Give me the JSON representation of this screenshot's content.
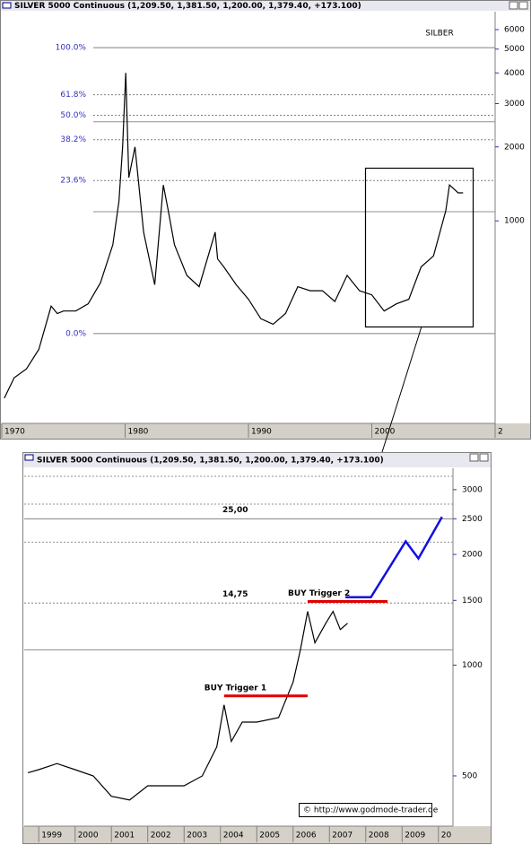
{
  "chart_data": [
    {
      "type": "line",
      "window_title": "SILVER 5000 Continuous (1,209.50, 1,381.50, 1,200.00, 1,379.40, +173.100)",
      "title": "SILBER",
      "log_scale": true,
      "xlim": [
        1970,
        2010
      ],
      "xticks": [
        1970,
        1980,
        1990,
        2000,
        {
          "value": 2010,
          "label": "2"
        }
      ],
      "ylim": [
        150,
        7100
      ],
      "yticks": [
        1000,
        2000,
        3000,
        4000,
        5000,
        6000
      ],
      "series": [
        {
          "name": "SILVER 5000 Continuous",
          "color": "#000000",
          "x": [
            1970.2,
            1971,
            1972,
            1973,
            1974,
            1974.5,
            1975,
            1976,
            1977,
            1978,
            1979,
            1979.5,
            1979.8,
            1980.05,
            1980.3,
            1980.8,
            1981.5,
            1982.4,
            1983.1,
            1983.5,
            1984,
            1985,
            1986,
            1987.3,
            1987.5,
            1988,
            1989,
            1990,
            1991,
            1992,
            1993,
            1994,
            1995,
            1996,
            1997,
            1998,
            1999,
            2000,
            2001,
            2002,
            2003,
            2004,
            2005,
            2006,
            2006.3,
            2007,
            2007.4
          ],
          "values": [
            190,
            230,
            250,
            300,
            450,
            420,
            430,
            430,
            460,
            560,
            800,
            1200,
            2000,
            4000,
            1500,
            2000,
            900,
            550,
            1400,
            1100,
            800,
            600,
            540,
            900,
            700,
            650,
            550,
            480,
            400,
            380,
            420,
            540,
            520,
            520,
            470,
            600,
            520,
            500,
            430,
            460,
            480,
            650,
            720,
            1100,
            1400,
            1300,
            1300
          ]
        }
      ],
      "levels": [
        {
          "value": 5070,
          "label": "100.0%",
          "dash": false
        },
        {
          "value": 3260,
          "label": "61.8%",
          "dash": true
        },
        {
          "value": 2690,
          "label": "50.0%",
          "dash": true
        },
        {
          "value": 2140,
          "label": "38.2%",
          "dash": true
        },
        {
          "value": 1460,
          "label": "23.6%",
          "dash": true
        },
        {
          "value": 348,
          "label": "0.0%",
          "dash": false
        }
      ],
      "reference_lines": [
        {
          "value": 2530,
          "dash": false
        },
        {
          "value": 1090,
          "dash": false
        }
      ]
    },
    {
      "type": "line",
      "window_title": "SILVER 5000 Continuous (1,209.50, 1,381.50, 1,200.00, 1,379.40, +173.100)",
      "log_scale": true,
      "xlim": [
        1998.6,
        2010.4
      ],
      "xticks": [
        1999,
        2000,
        2001,
        2002,
        2003,
        2004,
        2005,
        2006,
        2007,
        2008,
        2009,
        {
          "value": 2010,
          "label": "20"
        }
      ],
      "ylim": [
        365,
        3430
      ],
      "yticks": [
        500,
        1000,
        1500,
        2000,
        2500,
        3000
      ],
      "series": [
        {
          "name": "SILVER 5000 Continuous",
          "color": "#000000",
          "x": [
            1998.7,
            1999,
            1999.5,
            2000,
            2000.5,
            2001,
            2001.5,
            2002,
            2002.5,
            2003,
            2003.5,
            2003.9,
            2004.1,
            2004.3,
            2004.6,
            2005,
            2005.6,
            2006,
            2006.2,
            2006.4,
            2006.6,
            2006.9,
            2007.1,
            2007.3,
            2007.5
          ],
          "values": [
            510,
            520,
            540,
            520,
            500,
            440,
            430,
            470,
            470,
            470,
            500,
            600,
            780,
            620,
            700,
            700,
            720,
            900,
            1100,
            1400,
            1150,
            1300,
            1400,
            1250,
            1300
          ]
        },
        {
          "name": "Projection",
          "color": "#1010e0",
          "x": [
            2007.44,
            2008.14,
            2009.1,
            2009.45,
            2010.1
          ],
          "values": [
            1530,
            1530,
            2170,
            1950,
            2530
          ]
        }
      ],
      "levels": [
        {
          "value": 2500,
          "label": "25,00",
          "dash": false
        },
        {
          "value": 1475,
          "label": "14,75",
          "dash": true
        }
      ],
      "reference_lines": [
        {
          "value": 3260,
          "dash": true
        },
        {
          "value": 2740,
          "dash": true
        },
        {
          "value": 2160,
          "dash": true
        },
        {
          "value": 1100,
          "dash": false
        }
      ],
      "triggers": [
        {
          "label": "BUY Trigger 1",
          "value": 825,
          "x": [
            2004.1,
            2006.4
          ]
        },
        {
          "label": "BUY Trigger 2",
          "value": 1490,
          "x": [
            2006.4,
            2008.6
          ]
        }
      ],
      "source": "© http://www.godmode-trader.de"
    }
  ]
}
